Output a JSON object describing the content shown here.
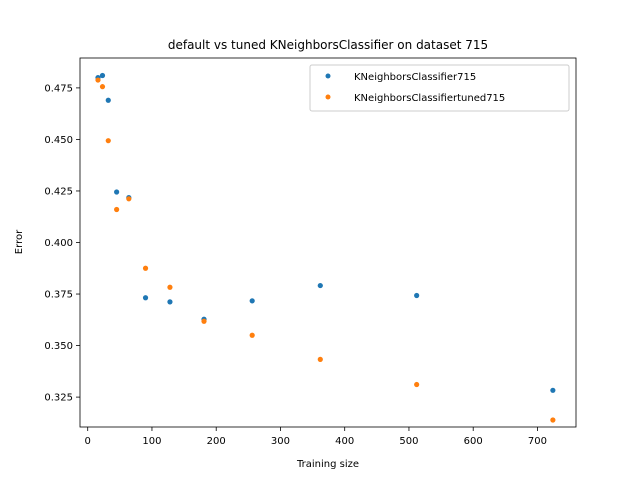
{
  "chart_data": {
    "type": "scatter",
    "title": "default vs tuned KNeighborsClassifier on dataset 715",
    "xlabel": "Training size",
    "ylabel": "Error",
    "xlim": [
      -12,
      760
    ],
    "ylim": [
      0.3105,
      0.4895
    ],
    "x_ticks": [
      0,
      100,
      200,
      300,
      400,
      500,
      600,
      700
    ],
    "y_ticks": [
      0.325,
      0.35,
      0.375,
      0.4,
      0.425,
      0.45,
      0.475
    ],
    "y_tick_labels": [
      "0.325",
      "0.350",
      "0.375",
      "0.400",
      "0.425",
      "0.450",
      "0.475"
    ],
    "grid": false,
    "legend_position": "top-right",
    "series": [
      {
        "name": "KNeighborsClassifier715",
        "color": "#1f77b4",
        "points": [
          {
            "x": 16,
            "y": 0.48
          },
          {
            "x": 23,
            "y": 0.481
          },
          {
            "x": 32,
            "y": 0.469
          },
          {
            "x": 45,
            "y": 0.4245
          },
          {
            "x": 64,
            "y": 0.4218
          },
          {
            "x": 90,
            "y": 0.3732
          },
          {
            "x": 128,
            "y": 0.3712
          },
          {
            "x": 181,
            "y": 0.3628
          },
          {
            "x": 256,
            "y": 0.3717
          },
          {
            "x": 362,
            "y": 0.3791
          },
          {
            "x": 512,
            "y": 0.3743
          },
          {
            "x": 724,
            "y": 0.3283
          }
        ]
      },
      {
        "name": "KNeighborsClassifiertuned715",
        "color": "#ff7f0e",
        "points": [
          {
            "x": 16,
            "y": 0.4788
          },
          {
            "x": 23,
            "y": 0.4756
          },
          {
            "x": 32,
            "y": 0.4494
          },
          {
            "x": 45,
            "y": 0.416
          },
          {
            "x": 64,
            "y": 0.4212
          },
          {
            "x": 90,
            "y": 0.3875
          },
          {
            "x": 128,
            "y": 0.3783
          },
          {
            "x": 181,
            "y": 0.3618
          },
          {
            "x": 256,
            "y": 0.355
          },
          {
            "x": 362,
            "y": 0.3433
          },
          {
            "x": 512,
            "y": 0.3311
          },
          {
            "x": 724,
            "y": 0.3139
          }
        ]
      }
    ]
  }
}
